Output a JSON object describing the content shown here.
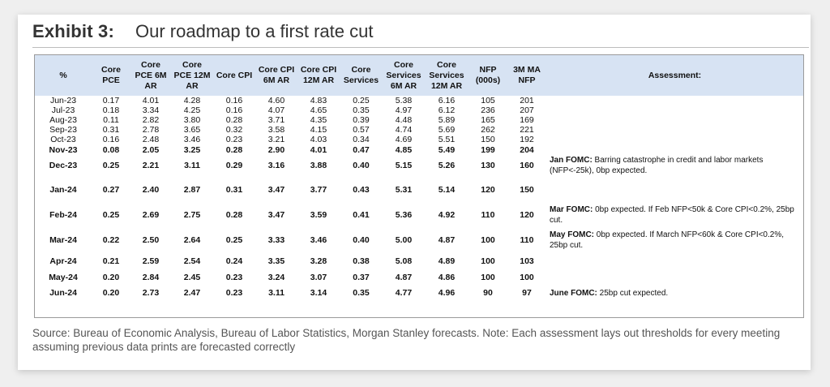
{
  "exhibit": {
    "label": "Exhibit 3:",
    "title": "Our roadmap to a first rate cut"
  },
  "table": {
    "headers": [
      "%",
      "Core PCE",
      "Core PCE 6M AR",
      "Core PCE 12M AR",
      "Core CPI",
      "Core CPI 6M AR",
      "Core CPI 12M AR",
      "Core Services",
      "Core Services 6M AR",
      "Core Services 12M AR",
      "NFP (000s)",
      "3M MA NFP",
      "Assessment:"
    ],
    "rows": [
      {
        "bold": false,
        "h": 12,
        "cells": [
          "Jun-23",
          "0.17",
          "4.01",
          "4.28",
          "0.16",
          "4.60",
          "4.83",
          "0.25",
          "5.38",
          "6.16",
          "105",
          "201"
        ],
        "label": "",
        "text": ""
      },
      {
        "bold": false,
        "h": 12,
        "cells": [
          "Jul-23",
          "0.18",
          "3.34",
          "4.25",
          "0.16",
          "4.07",
          "4.65",
          "0.35",
          "4.97",
          "6.12",
          "236",
          "207"
        ],
        "label": "",
        "text": ""
      },
      {
        "bold": false,
        "h": 12,
        "cells": [
          "Aug-23",
          "0.11",
          "2.82",
          "3.80",
          "0.28",
          "3.71",
          "4.35",
          "0.39",
          "4.48",
          "5.89",
          "165",
          "169"
        ],
        "label": "",
        "text": ""
      },
      {
        "bold": false,
        "h": 12,
        "cells": [
          "Sep-23",
          "0.31",
          "2.78",
          "3.65",
          "0.32",
          "3.58",
          "4.15",
          "0.57",
          "4.74",
          "5.69",
          "262",
          "221"
        ],
        "label": "",
        "text": ""
      },
      {
        "bold": false,
        "h": 12,
        "cells": [
          "Oct-23",
          "0.16",
          "2.48",
          "3.46",
          "0.23",
          "3.21",
          "4.03",
          "0.34",
          "4.69",
          "5.51",
          "150",
          "192"
        ],
        "label": "",
        "text": ""
      },
      {
        "bold": true,
        "h": 13,
        "cells": [
          "Nov-23",
          "0.08",
          "2.05",
          "3.25",
          "0.28",
          "2.90",
          "4.01",
          "0.47",
          "4.85",
          "5.49",
          "199",
          "204"
        ],
        "label": "",
        "text": ""
      },
      {
        "bold": true,
        "h": 16,
        "cells": [
          "Dec-23",
          "0.25",
          "2.21",
          "3.11",
          "0.29",
          "3.16",
          "3.88",
          "0.40",
          "5.15",
          "5.26",
          "130",
          "160"
        ],
        "label": "Jan FOMC:",
        "text": " Barring catastrophe in credit and labor markets (NFP<-25k), 0bp expected."
      },
      {
        "bold": true,
        "h": 33,
        "cells": [
          "Jan-24",
          "0.27",
          "2.40",
          "2.87",
          "0.31",
          "3.47",
          "3.77",
          "0.43",
          "5.31",
          "5.14",
          "120",
          "150"
        ],
        "label": "",
        "text": ""
      },
      {
        "bold": true,
        "h": 30,
        "cells": [
          "Feb-24",
          "0.25",
          "2.69",
          "2.75",
          "0.28",
          "3.47",
          "3.59",
          "0.41",
          "5.36",
          "4.92",
          "110",
          "120"
        ],
        "label": "Mar FOMC:",
        "text": " 0bp expected. If Feb NFP<50k & Core CPI<0.2%, 25bp cut."
      },
      {
        "bold": true,
        "h": 32,
        "cells": [
          "Mar-24",
          "0.22",
          "2.50",
          "2.64",
          "0.25",
          "3.33",
          "3.46",
          "0.40",
          "5.00",
          "4.87",
          "100",
          "110"
        ],
        "label": "May FOMC:",
        "text": " 0bp expected. If March NFP<60k & Core CPI<0.2%, 25bp cut."
      },
      {
        "bold": true,
        "h": 20,
        "cells": [
          "Apr-24",
          "0.21",
          "2.59",
          "2.54",
          "0.24",
          "3.35",
          "3.28",
          "0.38",
          "5.08",
          "4.89",
          "100",
          "103"
        ],
        "label": "",
        "text": ""
      },
      {
        "bold": true,
        "h": 20,
        "cells": [
          "May-24",
          "0.20",
          "2.84",
          "2.45",
          "0.23",
          "3.24",
          "3.07",
          "0.37",
          "4.87",
          "4.86",
          "100",
          "100"
        ],
        "label": "",
        "text": ""
      },
      {
        "bold": true,
        "h": 18,
        "cells": [
          "Jun-24",
          "0.20",
          "2.73",
          "2.47",
          "0.23",
          "3.11",
          "3.14",
          "0.35",
          "4.77",
          "4.96",
          "90",
          "97"
        ],
        "label": "June FOMC:",
        "text": " 25bp cut expected."
      }
    ]
  },
  "source": "Source: Bureau of Economic Analysis, Bureau of Labor Statistics, Morgan Stanley forecasts. Note: Each assessment lays out thresholds for every meeting assuming previous data prints are forecasted correctly"
}
